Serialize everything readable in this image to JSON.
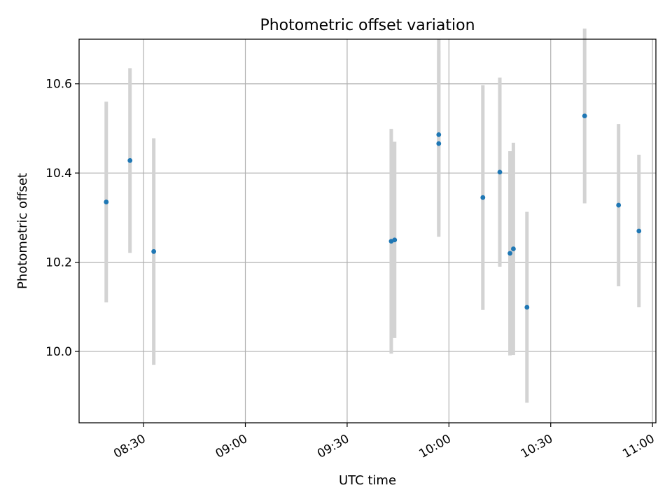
{
  "chart_data": {
    "type": "scatter",
    "title": "Photometric offset variation",
    "xlabel": "UTC time",
    "ylabel": "Photometric offset",
    "x_ticks": [
      "08:30",
      "09:00",
      "09:30",
      "10:00",
      "10:30",
      "11:00"
    ],
    "y_ticks": [
      "10.0",
      "10.2",
      "10.4",
      "10.6"
    ],
    "xlim": [
      "08:11",
      "11:01"
    ],
    "ylim": [
      9.84,
      10.7
    ],
    "grid": true,
    "marker_color": "#1f77b4",
    "errorbar_color": "#d3d3d3",
    "points": [
      {
        "x": "08:19",
        "y": 10.335,
        "err": 0.225
      },
      {
        "x": "08:26",
        "y": 10.428,
        "err": 0.207
      },
      {
        "x": "08:33",
        "y": 10.224,
        "err": 0.254
      },
      {
        "x": "09:43",
        "y": 10.247,
        "err": 0.252
      },
      {
        "x": "09:44",
        "y": 10.25,
        "err": 0.22
      },
      {
        "x": "09:57",
        "y": 10.466,
        "err": 0.209
      },
      {
        "x": "09:57",
        "y": 10.486,
        "err": 0.214
      },
      {
        "x": "10:10",
        "y": 10.345,
        "err": 0.252
      },
      {
        "x": "10:15",
        "y": 10.402,
        "err": 0.212
      },
      {
        "x": "10:18",
        "y": 10.22,
        "err": 0.229
      },
      {
        "x": "10:19",
        "y": 10.23,
        "err": 0.238
      },
      {
        "x": "10:23",
        "y": 10.099,
        "err": 0.214
      },
      {
        "x": "10:40",
        "y": 10.528,
        "err": 0.196
      },
      {
        "x": "10:50",
        "y": 10.328,
        "err": 0.182
      },
      {
        "x": "10:56",
        "y": 10.27,
        "err": 0.171
      }
    ]
  }
}
